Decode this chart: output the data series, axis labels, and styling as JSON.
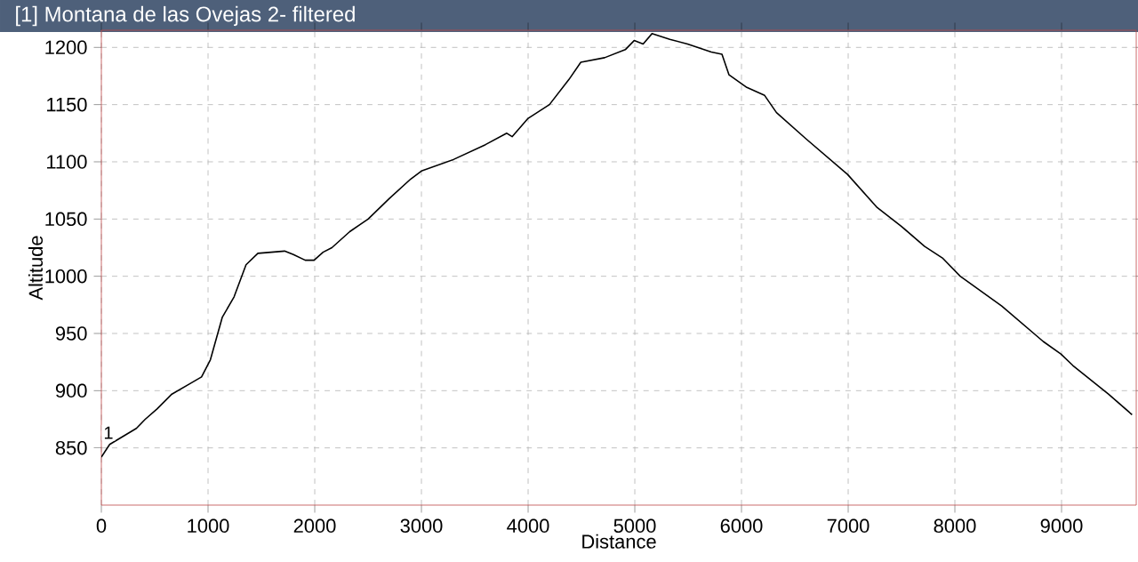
{
  "chart_data": {
    "type": "line",
    "title": "[1] Montana de las Ovejas 2- filtered",
    "xlabel": "Distance",
    "ylabel": "Altitude",
    "x": [
      0,
      78,
      328,
      411,
      522,
      661,
      828,
      939,
      1022,
      1133,
      1244,
      1356,
      1467,
      1717,
      1800,
      1911,
      1994,
      2078,
      2161,
      2328,
      2500,
      2700,
      2900,
      3000,
      3300,
      3600,
      3800,
      3850,
      4000,
      4200,
      4383,
      4494,
      4717,
      4911,
      4994,
      5078,
      5161,
      5328,
      5494,
      5717,
      5817,
      5883,
      6050,
      6217,
      6328,
      6606,
      6994,
      7272,
      7494,
      7717,
      7883,
      8050,
      8439,
      8828,
      8994,
      9106,
      9439,
      9661
    ],
    "series": [
      {
        "color": "#000000",
        "values": [
          842,
          853,
          867,
          875,
          884,
          897,
          906,
          912,
          927,
          964,
          982,
          1010,
          1020,
          1022,
          1019,
          1014,
          1014,
          1021,
          1025,
          1039,
          1050,
          1068,
          1085,
          1092,
          1102,
          1115,
          1125,
          1122,
          1138,
          1150,
          1172,
          1187,
          1191,
          1198,
          1206,
          1203,
          1212,
          1207,
          1203,
          1196,
          1194,
          1176,
          1165,
          1158,
          1143,
          1120,
          1089,
          1060,
          1044,
          1026,
          1016,
          1000,
          974,
          943,
          932,
          922,
          897,
          879
        ]
      }
    ],
    "xlim": [
      0,
      9700
    ],
    "ylim": [
      800,
      1215
    ],
    "xticks": [
      0,
      1000,
      2000,
      3000,
      4000,
      5000,
      6000,
      7000,
      8000,
      9000
    ],
    "yticks": [
      850,
      900,
      950,
      1000,
      1050,
      1100,
      1150,
      1200
    ],
    "annotations": [
      {
        "text": "1",
        "x": 0,
        "y": 842
      }
    ],
    "grid": true,
    "line_style": "solid",
    "marker": "none"
  }
}
